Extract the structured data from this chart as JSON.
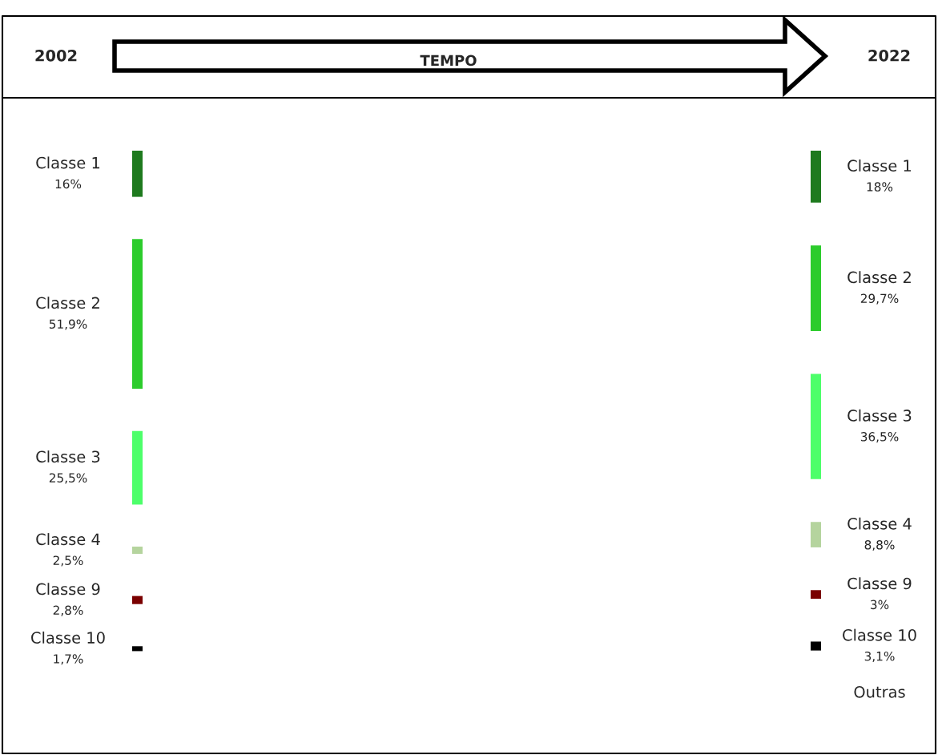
{
  "chart_data": {
    "type": "other",
    "annotations": [
      "TEMPO"
    ],
    "categories": [
      "Classe 1",
      "Classe 2",
      "Classe 3",
      "Classe 4",
      "Classe 9",
      "Classe 10",
      "Outras"
    ],
    "series": [
      {
        "name": "2002",
        "values": [
          16,
          51.9,
          25.5,
          2.5,
          2.8,
          1.7,
          null
        ],
        "value_labels": [
          "16%",
          "51,9%",
          "25,5%",
          "2,5%",
          "2,8%",
          "1,7%",
          null
        ],
        "colors": [
          "#1e7a1e",
          "#2ccc2c",
          "#4dff6a",
          "#b5d49e",
          "#7a0000",
          "#000000",
          "#3a3a9a"
        ]
      },
      {
        "name": "2022",
        "values": [
          18,
          29.7,
          36.5,
          8.8,
          3,
          3.1,
          null
        ],
        "value_labels": [
          "18%",
          "29,7%",
          "36,5%",
          "8,8%",
          "3%",
          "3,1%",
          null
        ],
        "colors": [
          "#1e7a1e",
          "#2ccc2c",
          "#4dff6a",
          "#b5d49e",
          "#7a0000",
          "#000000",
          "#3a3a9a"
        ]
      }
    ]
  }
}
